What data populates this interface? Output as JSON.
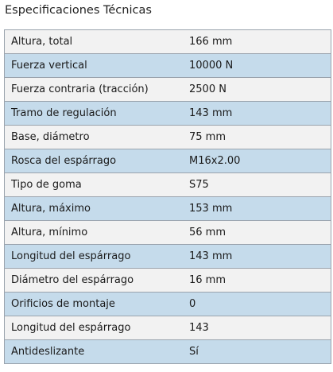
{
  "title": "Especificaciones Técnicas",
  "colors": {
    "row_light": "#f2f2f2",
    "row_blue": "#c5dbeb",
    "border": "#9aa3ad"
  },
  "rows": [
    {
      "label": "Altura, total",
      "value": "166 mm"
    },
    {
      "label": "Fuerza vertical",
      "value": "10000 N"
    },
    {
      "label": "Fuerza contraria (tracción)",
      "value": "2500 N"
    },
    {
      "label": "Tramo de regulación",
      "value": "143 mm"
    },
    {
      "label": "Base, diámetro",
      "value": "75 mm"
    },
    {
      "label": "Rosca del espárrago",
      "value": "M16x2.00"
    },
    {
      "label": "Tipo de goma",
      "value": "S75"
    },
    {
      "label": "Altura, máximo",
      "value": "153 mm"
    },
    {
      "label": "Altura, mínimo",
      "value": "56 mm"
    },
    {
      "label": "Longitud del espárrago",
      "value": "143 mm"
    },
    {
      "label": "Diámetro del espárrago",
      "value": "16 mm"
    },
    {
      "label": "Orificios de montaje",
      "value": "0"
    },
    {
      "label": "Longitud del espárrago",
      "value": "143"
    },
    {
      "label": "Antideslizante",
      "value": "Sí"
    }
  ]
}
